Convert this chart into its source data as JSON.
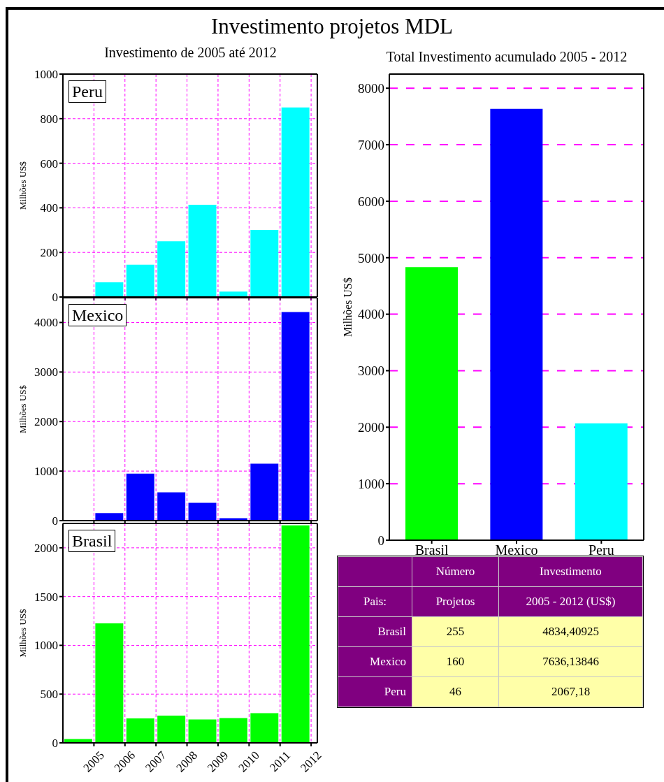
{
  "chart_data": [
    {
      "type": "histogram",
      "title": "Investimento projetos MDL",
      "subtitle": "Investimento de 2005 até 2012",
      "ylabel": "Milhões US$",
      "bins": [
        2004,
        2005,
        2006,
        2007,
        2008,
        2009,
        2010,
        2011,
        2012
      ],
      "xlim": [
        2004,
        2012.2
      ],
      "xticks": [
        2005,
        2006,
        2007,
        2008,
        2009,
        2010,
        2011,
        2012
      ],
      "ylim": [
        0,
        1000
      ],
      "yticks": [
        0,
        200,
        400,
        600,
        800,
        1000
      ],
      "grid": true,
      "legend": "top left",
      "tick_labels": "y",
      "series": [
        {
          "name": "Peru",
          "color": "#00ffff",
          "values": [
            0,
            66,
            145,
            250,
            414,
            24,
            301,
            850
          ]
        }
      ]
    },
    {
      "type": "histogram",
      "ylabel": "Milhões US$",
      "bins": [
        2004,
        2005,
        2006,
        2007,
        2008,
        2009,
        2010,
        2011,
        2012
      ],
      "xlim": [
        2004,
        2012.2
      ],
      "xticks": [
        2005,
        2006,
        2007,
        2008,
        2009,
        2010,
        2011,
        2012
      ],
      "ylim": [
        0,
        4500
      ],
      "yticks": [
        0,
        1000,
        2000,
        3000,
        4000
      ],
      "grid": true,
      "legend": "top left",
      "tick_labels": "y",
      "series": [
        {
          "name": "Mexico",
          "color": "#0000ff",
          "values": [
            0,
            150,
            950,
            570,
            360,
            50,
            1150,
            4210
          ]
        }
      ]
    },
    {
      "type": "histogram",
      "ylabel": "Milhões US$",
      "bins": [
        2004,
        2005,
        2006,
        2007,
        2008,
        2009,
        2010,
        2011,
        2012
      ],
      "xlim": [
        2004,
        2012.2
      ],
      "xticks": [
        2005,
        2006,
        2007,
        2008,
        2009,
        2010,
        2011,
        2012
      ],
      "ylim": [
        0,
        2250
      ],
      "yticks": [
        0,
        500,
        1000,
        1500,
        2000
      ],
      "grid": true,
      "legend": "top left",
      "series": [
        {
          "name": "Brasil",
          "color": "#00ff00",
          "values": [
            40,
            1225,
            250,
            280,
            240,
            255,
            305,
            2230
          ]
        }
      ]
    },
    {
      "type": "bar",
      "title": "Total Investimento acumulado 2005 - 2012",
      "ylabel": "Milhões US$",
      "categories": [
        "Brasil",
        "Mexico",
        "Peru"
      ],
      "values": [
        4834.40925,
        7636.13846,
        2067.18
      ],
      "value_labels": [
        "4834,40925",
        "7636,13846",
        "2067,18"
      ],
      "colors": [
        "#00ff00",
        "#0000ff",
        "#00ffff"
      ],
      "ylim": [
        0,
        8250
      ],
      "yticks": [
        0,
        1000,
        2000,
        3000,
        4000,
        5000,
        6000,
        7000,
        8000
      ],
      "grid": "y"
    },
    {
      "type": "other",
      "xlabel": "Pais:",
      "categories": [
        "Brasil",
        "Mexico",
        "Peru"
      ],
      "data_labels": true,
      "annotations": [
        "Investimento 2005 - 2012 (US$)"
      ],
      "series": [
        {
          "name": "Número Projetos",
          "values": [
            255,
            160,
            46
          ]
        }
      ]
    }
  ]
}
